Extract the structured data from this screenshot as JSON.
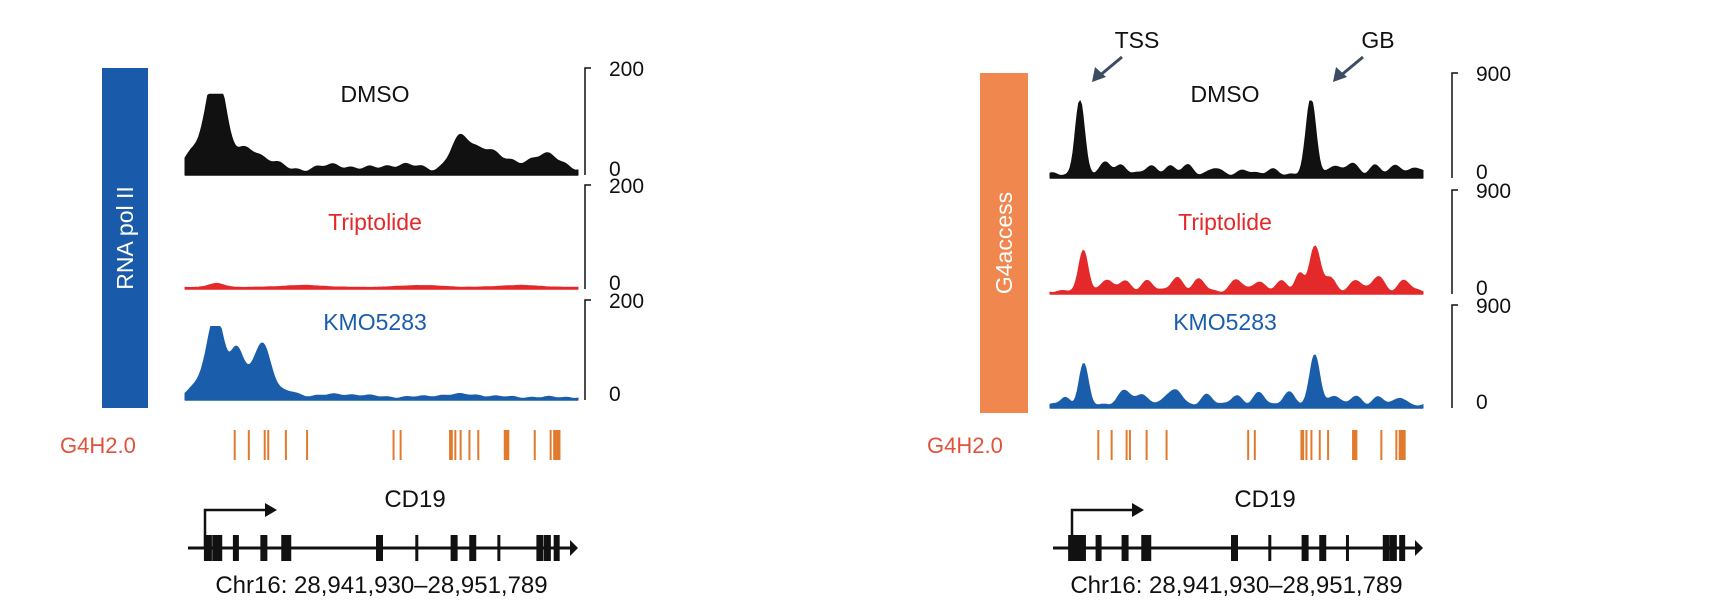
{
  "colors": {
    "black": "#111111",
    "red": "#e4292a",
    "blue": "#1a5eab",
    "pol2_bar": "#1a5aaa",
    "g4_bar": "#f0874f",
    "g4_ticks": "#e27a2e",
    "g4_label": "#e0523a",
    "arrow": "#3b4c63"
  },
  "panels": [
    {
      "id": "rnapol2",
      "assay_label": "RNA pol II",
      "tracks": [
        {
          "label": "DMSO",
          "color": "black",
          "scale_max": "200",
          "scale_min": "0",
          "peaks": [
            [
              0.08,
              1.0,
              0.022
            ],
            [
              0.055,
              0.35,
              0.045
            ],
            [
              0.16,
              0.25,
              0.03
            ],
            [
              0.22,
              0.1,
              0.03
            ],
            [
              0.38,
              0.07,
              0.05
            ],
            [
              0.55,
              0.08,
              0.05
            ],
            [
              0.7,
              0.4,
              0.025
            ],
            [
              0.76,
              0.25,
              0.03
            ],
            [
              0.82,
              0.1,
              0.04
            ],
            [
              0.92,
              0.2,
              0.04
            ]
          ],
          "baseline": 0.06,
          "amp": 0.74
        },
        {
          "label": "Triptolide",
          "color": "red",
          "scale_max": "200",
          "scale_min": "0",
          "peaks": [
            [
              0.08,
              0.6,
              0.02
            ],
            [
              0.3,
              0.3,
              0.05
            ],
            [
              0.6,
              0.3,
              0.05
            ],
            [
              0.85,
              0.3,
              0.05
            ]
          ],
          "baseline": 0.05,
          "amp": 0.06
        },
        {
          "label": "KMO5283",
          "color": "blue",
          "scale_max": "200",
          "scale_min": "0",
          "peaks": [
            [
              0.08,
              1.0,
              0.02
            ],
            [
              0.13,
              0.48,
              0.015
            ],
            [
              0.2,
              0.62,
              0.02
            ],
            [
              0.05,
              0.25,
              0.03
            ],
            [
              0.16,
              0.3,
              0.03
            ],
            [
              0.26,
              0.08,
              0.025
            ],
            [
              0.4,
              0.04,
              0.06
            ],
            [
              0.7,
              0.04,
              0.06
            ]
          ],
          "baseline": 0.03,
          "amp": 0.72
        }
      ],
      "g4_label": "G4H2.0",
      "g4_ticks": [
        0.07,
        0.11,
        0.155,
        0.165,
        0.215,
        0.275,
        0.52,
        0.54,
        0.68,
        0.685,
        0.695,
        0.71,
        0.735,
        0.76,
        0.835,
        0.84,
        0.845,
        0.92,
        0.965,
        0.975,
        0.98,
        0.985,
        0.99
      ],
      "gene": {
        "name": "CD19",
        "coords": "Chr16: 28,941,930–28,951,789"
      }
    },
    {
      "id": "g4access",
      "assay_label": "G4access",
      "annotations": [
        {
          "label": "TSS"
        },
        {
          "label": "GB"
        }
      ],
      "tracks": [
        {
          "label": "DMSO",
          "color": "black",
          "scale_max": "900",
          "scale_min": "0",
          "peaks": [
            [
              0.08,
              1.0,
              0.012
            ],
            [
              0.15,
              0.16,
              0.015
            ],
            [
              0.19,
              0.12,
              0.015
            ],
            [
              0.27,
              0.12,
              0.015
            ],
            [
              0.32,
              0.1,
              0.015
            ],
            [
              0.37,
              0.12,
              0.015
            ],
            [
              0.44,
              0.08,
              0.015
            ],
            [
              0.52,
              0.07,
              0.015
            ],
            [
              0.6,
              0.07,
              0.015
            ],
            [
              0.7,
              1.0,
              0.013
            ],
            [
              0.76,
              0.12,
              0.015
            ],
            [
              0.81,
              0.15,
              0.015
            ],
            [
              0.87,
              0.12,
              0.015
            ],
            [
              0.93,
              0.12,
              0.015
            ],
            [
              0.98,
              0.1,
              0.015
            ]
          ],
          "baseline": 0.05,
          "amp": 0.72
        },
        {
          "label": "Triptolide",
          "color": "red",
          "scale_max": "900",
          "scale_min": "0",
          "peaks": [
            [
              0.09,
              0.82,
              0.012
            ],
            [
              0.15,
              0.22,
              0.015
            ],
            [
              0.2,
              0.2,
              0.015
            ],
            [
              0.26,
              0.2,
              0.015
            ],
            [
              0.34,
              0.28,
              0.015
            ],
            [
              0.4,
              0.22,
              0.015
            ],
            [
              0.5,
              0.22,
              0.015
            ],
            [
              0.56,
              0.2,
              0.015
            ],
            [
              0.62,
              0.18,
              0.015
            ],
            [
              0.67,
              0.35,
              0.012
            ],
            [
              0.71,
              0.88,
              0.014
            ],
            [
              0.75,
              0.25,
              0.015
            ],
            [
              0.82,
              0.22,
              0.015
            ],
            [
              0.88,
              0.3,
              0.015
            ],
            [
              0.95,
              0.2,
              0.015
            ]
          ],
          "baseline": 0.06,
          "amp": 0.48
        },
        {
          "label": "KMO5283",
          "color": "blue",
          "scale_max": "900",
          "scale_min": "0",
          "peaks": [
            [
              0.09,
              0.78,
              0.012
            ],
            [
              0.04,
              0.15,
              0.012
            ],
            [
              0.2,
              0.28,
              0.018
            ],
            [
              0.25,
              0.18,
              0.015
            ],
            [
              0.31,
              0.15,
              0.015
            ],
            [
              0.34,
              0.25,
              0.015
            ],
            [
              0.42,
              0.2,
              0.015
            ],
            [
              0.5,
              0.18,
              0.015
            ],
            [
              0.56,
              0.22,
              0.015
            ],
            [
              0.64,
              0.25,
              0.015
            ],
            [
              0.71,
              0.95,
              0.013
            ],
            [
              0.76,
              0.18,
              0.015
            ],
            [
              0.82,
              0.16,
              0.015
            ],
            [
              0.88,
              0.15,
              0.015
            ],
            [
              0.94,
              0.14,
              0.015
            ]
          ],
          "baseline": 0.05,
          "amp": 0.52
        }
      ],
      "g4_label": "G4H2.0",
      "g4_ticks": [
        0.07,
        0.11,
        0.155,
        0.165,
        0.215,
        0.275,
        0.52,
        0.54,
        0.68,
        0.685,
        0.695,
        0.71,
        0.735,
        0.76,
        0.835,
        0.84,
        0.845,
        0.92,
        0.965,
        0.975,
        0.98,
        0.985,
        0.99
      ],
      "gene": {
        "name": "CD19",
        "coords": "Chr16: 28,941,930–28,951,789"
      }
    }
  ]
}
